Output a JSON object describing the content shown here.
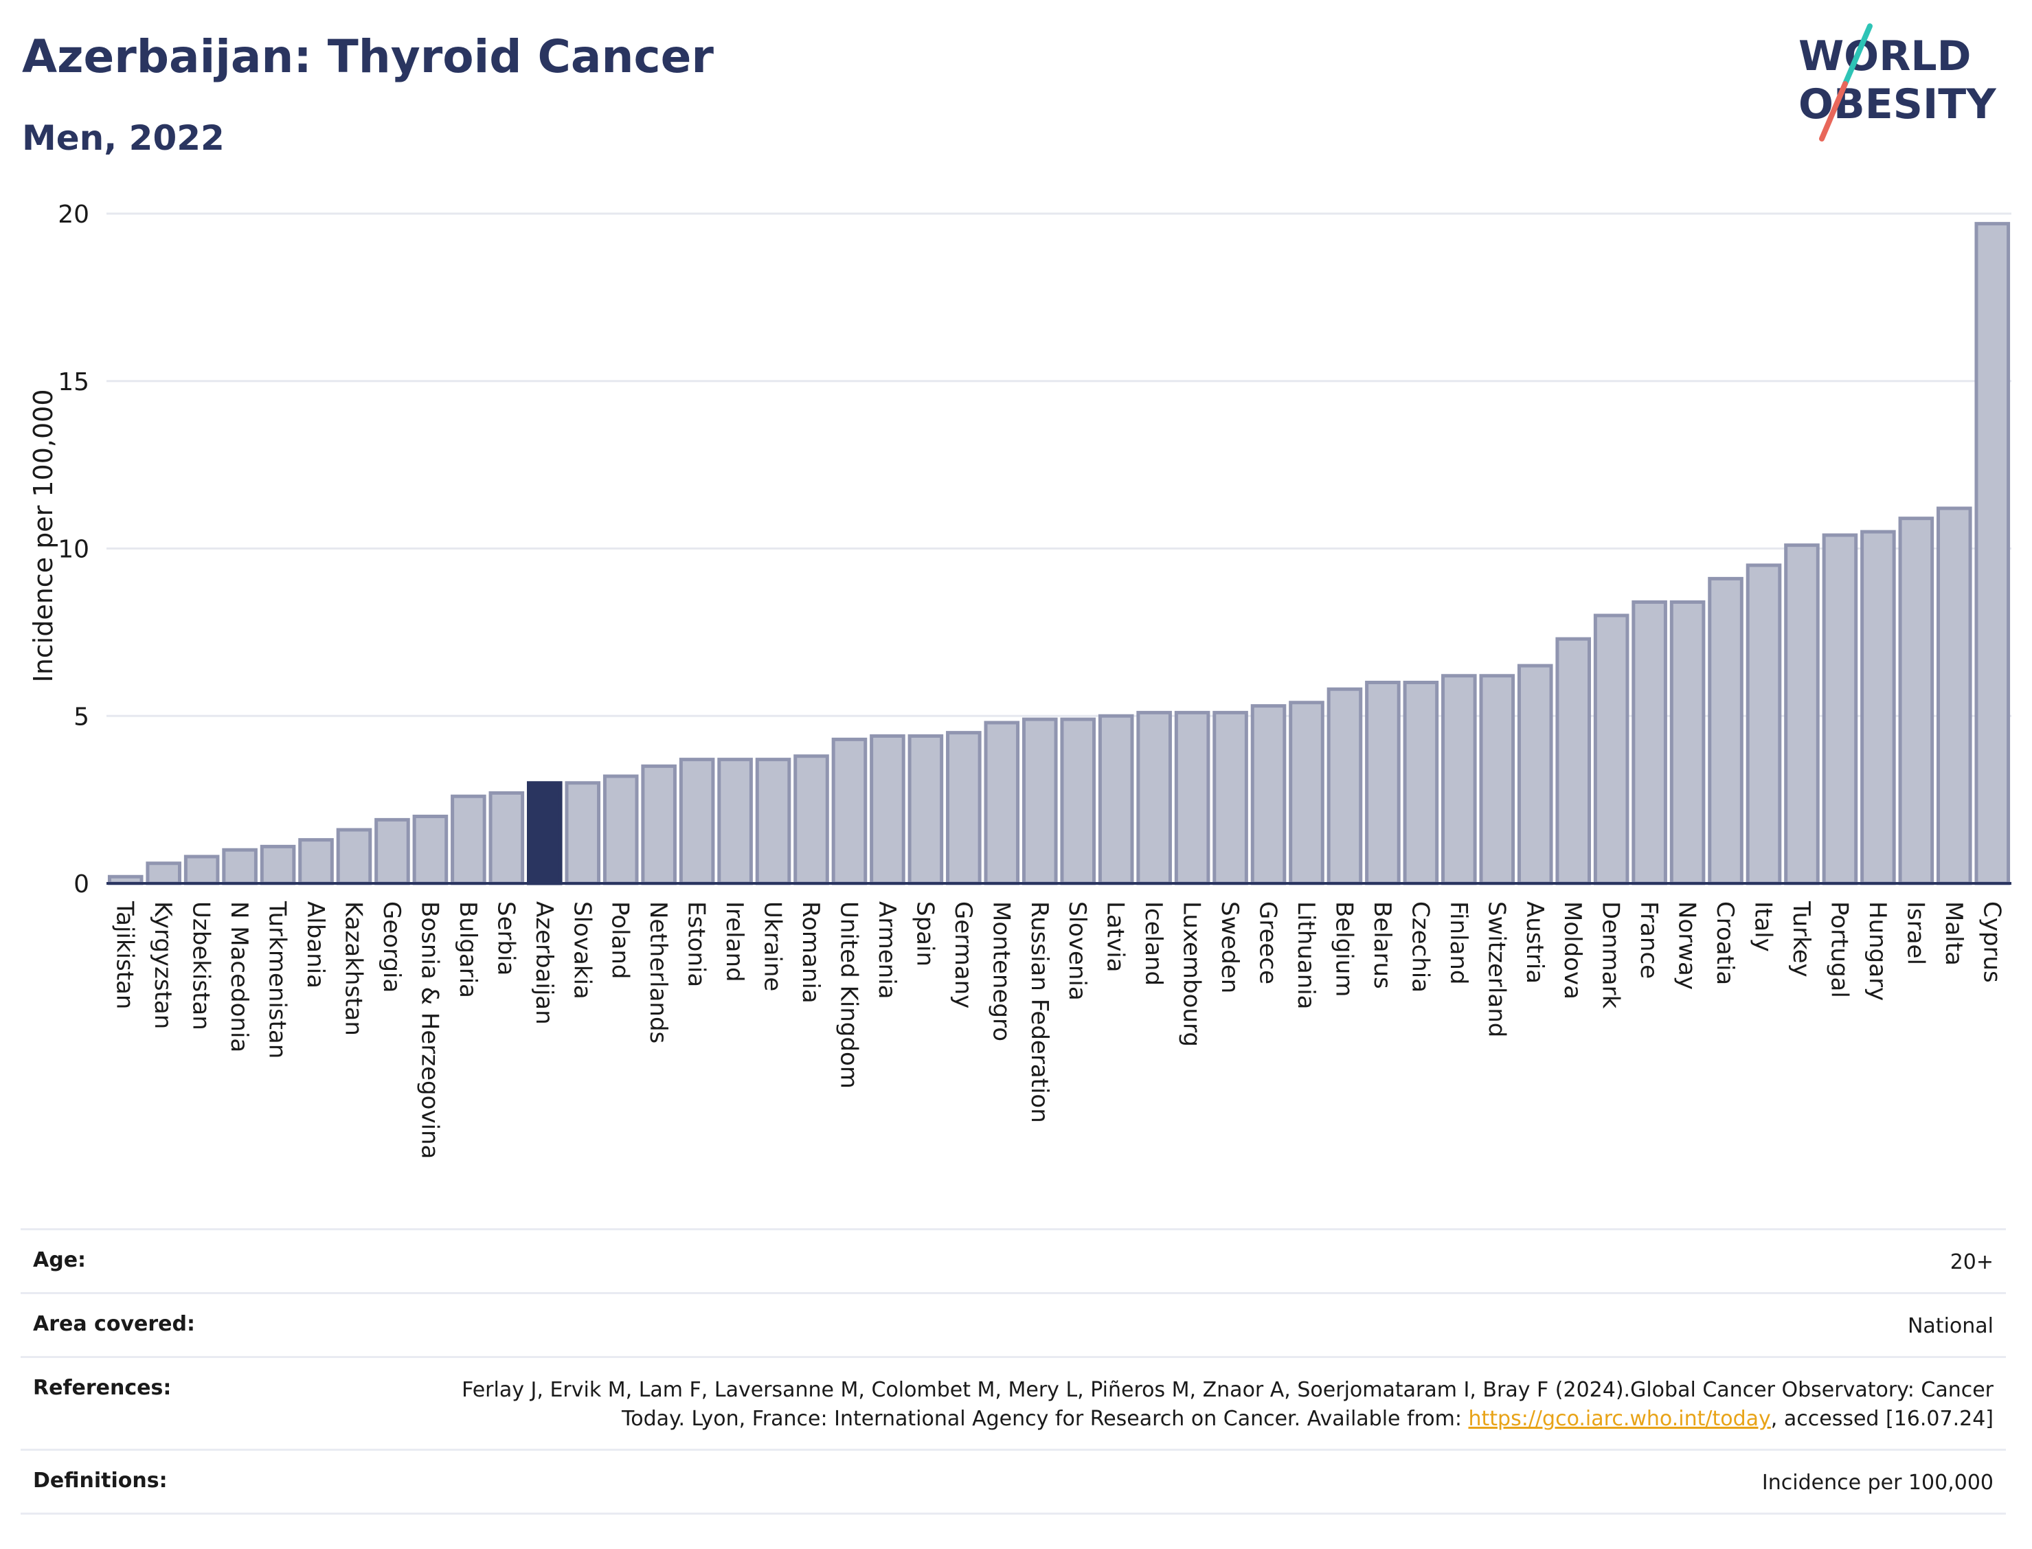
{
  "title": "Azerbaijan: Thyroid Cancer",
  "subtitle": "Men, 2022",
  "logo": {
    "line1": "WORLD",
    "line2": "OBESITY"
  },
  "colors": {
    "highlight": "#2a3560",
    "bar": "#bcc0cf",
    "bar_border": "#9095b0",
    "grid": "#e6e8ef",
    "accent_teal": "#2ec4b6",
    "accent_coral": "#e8675a",
    "link": "#e8a317"
  },
  "chart_data": {
    "type": "bar",
    "title": "Azerbaijan: Thyroid Cancer",
    "subtitle": "Men, 2022",
    "xlabel": "",
    "ylabel": "Incidence per 100,000",
    "ylim": [
      0,
      20
    ],
    "yticks": [
      0,
      5,
      10,
      15,
      20
    ],
    "grid": true,
    "highlight": "Azerbaijan",
    "categories": [
      "Tajikistan",
      "Kyrgyzstan",
      "Uzbekistan",
      "N Macedonia",
      "Turkmenistan",
      "Albania",
      "Kazakhstan",
      "Georgia",
      "Bosnia & Herzegovina",
      "Bulgaria",
      "Serbia",
      "Azerbaijan",
      "Slovakia",
      "Poland",
      "Netherlands",
      "Estonia",
      "Ireland",
      "Ukraine",
      "Romania",
      "United Kingdom",
      "Armenia",
      "Spain",
      "Germany",
      "Montenegro",
      "Russian Federation",
      "Slovenia",
      "Latvia",
      "Iceland",
      "Luxembourg",
      "Sweden",
      "Greece",
      "Lithuania",
      "Belgium",
      "Belarus",
      "Czechia",
      "Finland",
      "Switzerland",
      "Austria",
      "Moldova",
      "Denmark",
      "France",
      "Norway",
      "Croatia",
      "Italy",
      "Turkey",
      "Portugal",
      "Hungary",
      "Israel",
      "Malta",
      "Cyprus"
    ],
    "values": [
      0.2,
      0.6,
      0.8,
      1.0,
      1.1,
      1.3,
      1.6,
      1.9,
      2.0,
      2.6,
      2.7,
      3.0,
      3.0,
      3.2,
      3.5,
      3.7,
      3.7,
      3.7,
      3.8,
      4.3,
      4.4,
      4.4,
      4.5,
      4.8,
      4.9,
      4.9,
      5.0,
      5.1,
      5.1,
      5.1,
      5.3,
      5.4,
      5.8,
      6.0,
      6.0,
      6.2,
      6.2,
      6.5,
      7.3,
      8.0,
      8.4,
      8.4,
      9.1,
      9.5,
      10.1,
      10.4,
      10.5,
      10.9,
      11.2,
      19.7
    ]
  },
  "info": {
    "age_label": "Age:",
    "age_value": "20+",
    "area_label": "Area covered:",
    "area_value": "National",
    "ref_label": "References:",
    "ref_text": "Ferlay J, Ervik M, Lam F, Laversanne M, Colombet M, Mery L, Piñeros M, Znaor A, Soerjomataram I, Bray F (2024).Global Cancer Observatory: Cancer Today. Lyon, France: International Agency for Research on Cancer. Available from: ",
    "ref_link": "https://gco.iarc.who.int/today",
    "ref_suffix": ", accessed [16.07.24]",
    "def_label": "Definitions:",
    "def_value": "Incidence per 100,000"
  }
}
